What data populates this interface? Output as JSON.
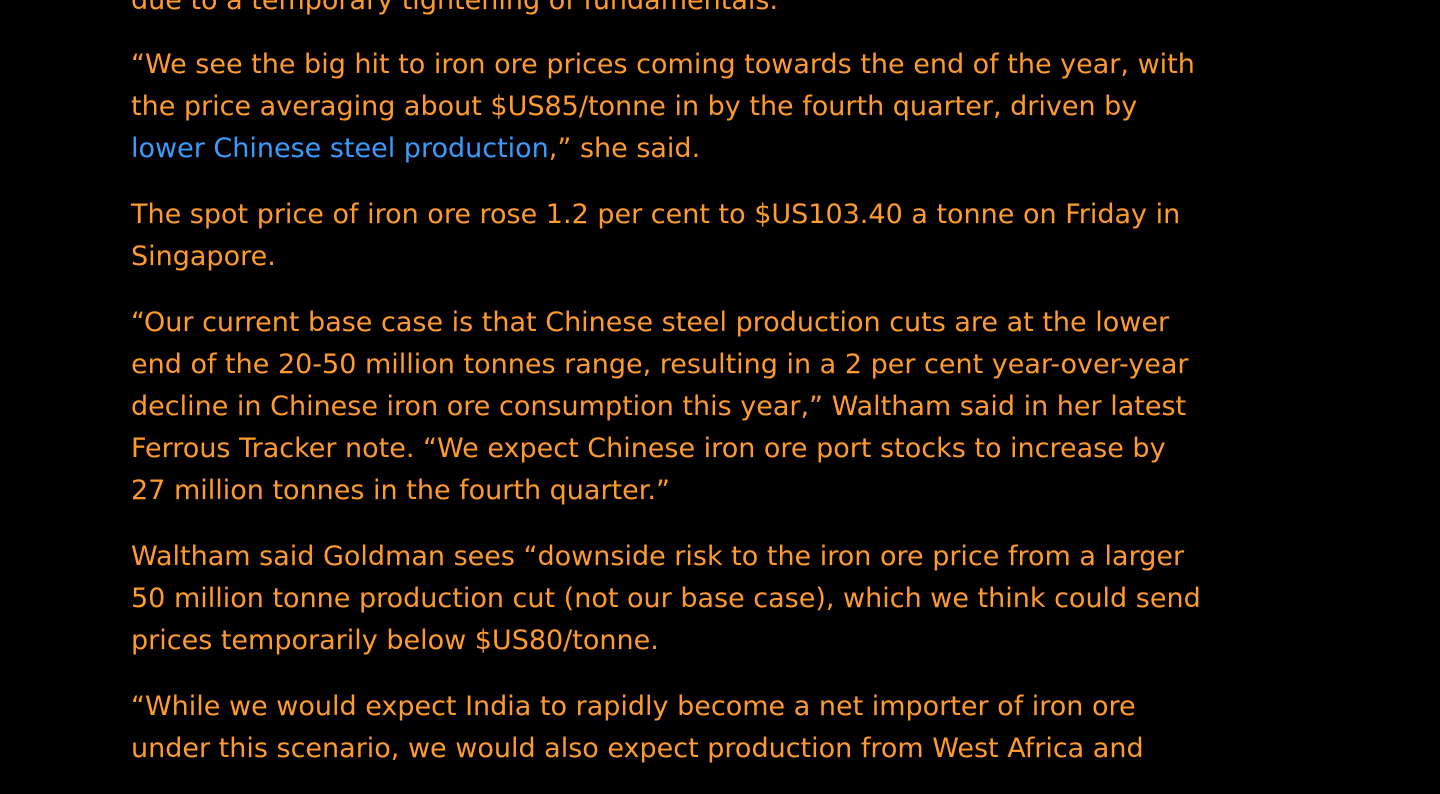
{
  "colors": {
    "background": "#000000",
    "body_text": "#ff9a2e",
    "link": "#3a9bff"
  },
  "article": {
    "paragraphs": [
      {
        "lines": [
          "due to a temporary tightening of fundamentals.”"
        ]
      },
      {
        "lines": [
          "“We see the big hit to iron ore prices coming towards the end of the year, with",
          "the price averaging about $US85/tonne in by the fourth quarter, driven by"
        ],
        "link_text": "lower Chinese steel production",
        "after_link": ",” she said."
      },
      {
        "lines": [
          "The spot price of iron ore rose 1.2 per cent to $US103.40 a tonne on Friday in",
          "Singapore."
        ]
      },
      {
        "lines": [
          "“Our current base case is that Chinese steel production cuts are at the lower",
          "end of the 20-50 million tonnes range, resulting in a 2 per cent year-over-year",
          "decline in Chinese iron ore consumption this year,” Waltham said in her latest",
          "Ferrous Tracker note. “We expect Chinese iron ore port stocks to increase by",
          "27 million tonnes in the fourth quarter.”"
        ]
      },
      {
        "lines": [
          "Waltham said Goldman sees “downside risk to the iron ore price from a larger",
          "50 million tonne production cut (not our base case), which we think could send",
          "prices temporarily below $US80/tonne."
        ]
      },
      {
        "lines": [
          "“While we would expect India to rapidly become a net importer of iron ore",
          "under this scenario, we would also expect production from West Africa and"
        ]
      }
    ]
  }
}
